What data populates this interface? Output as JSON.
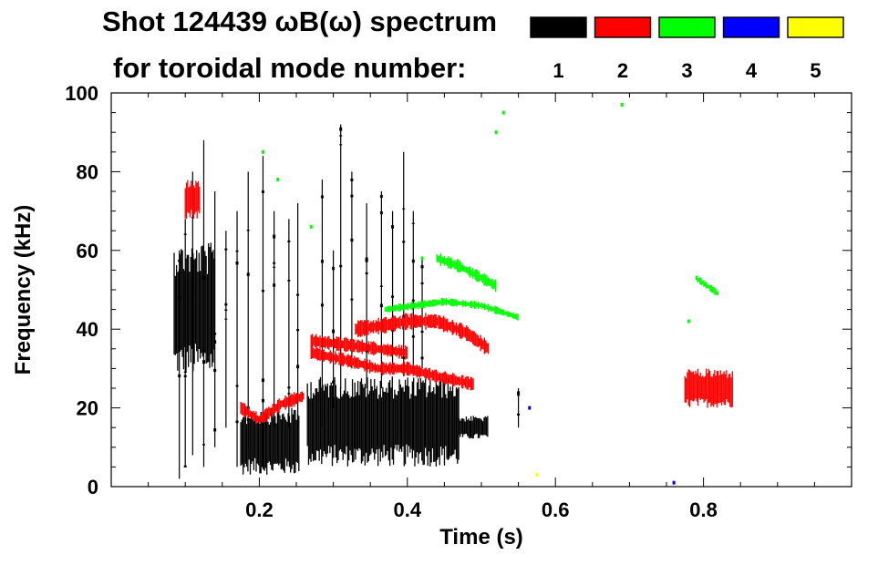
{
  "chart_data": {
    "type": "scatter",
    "title_line1": "Shot 124439 ωB(ω) spectrum",
    "title_line2": "for toroidal mode number:",
    "xlabel": "Time (s)",
    "ylabel": "Frequency (kHz)",
    "xlim": [
      0.0,
      1.0
    ],
    "ylim": [
      0,
      100
    ],
    "x_major_ticks": [
      0.2,
      0.4,
      0.6,
      0.8
    ],
    "x_minor_step": 0.05,
    "y_major_ticks": [
      0,
      20,
      40,
      60,
      80,
      100
    ],
    "y_minor_step": 5,
    "legend": [
      {
        "label": "1",
        "color": "#000000"
      },
      {
        "label": "2",
        "color": "#ff0000"
      },
      {
        "label": "3",
        "color": "#00ff00"
      },
      {
        "label": "4",
        "color": "#0000ff"
      },
      {
        "label": "5",
        "color": "#ffff00"
      }
    ],
    "series": [
      {
        "name": "n=1",
        "color": "#000000",
        "blobs": [
          {
            "t0": 0.085,
            "t1": 0.14,
            "f0": 28,
            "f1": 62
          },
          {
            "t0": 0.175,
            "t1": 0.255,
            "f0": 3,
            "f1": 20
          },
          {
            "t0": 0.265,
            "t1": 0.33,
            "f0": 5,
            "f1": 28
          },
          {
            "t0": 0.33,
            "t1": 0.47,
            "f0": 5,
            "f1": 28
          },
          {
            "t0": 0.47,
            "t1": 0.51,
            "f0": 12,
            "f1": 18
          }
        ],
        "streaks": [
          {
            "t": 0.092,
            "f0": 2,
            "f1": 60
          },
          {
            "t": 0.1,
            "f0": 5,
            "f1": 68
          },
          {
            "t": 0.11,
            "f0": 8,
            "f1": 80
          },
          {
            "t": 0.125,
            "f0": 5,
            "f1": 88
          },
          {
            "t": 0.14,
            "f0": 10,
            "f1": 75
          },
          {
            "t": 0.155,
            "f0": 15,
            "f1": 65
          },
          {
            "t": 0.17,
            "f0": 5,
            "f1": 70
          },
          {
            "t": 0.185,
            "f0": 10,
            "f1": 80
          },
          {
            "t": 0.205,
            "f0": 5,
            "f1": 84
          },
          {
            "t": 0.22,
            "f0": 15,
            "f1": 70
          },
          {
            "t": 0.24,
            "f0": 15,
            "f1": 68
          },
          {
            "t": 0.252,
            "f0": 15,
            "f1": 72
          },
          {
            "t": 0.285,
            "f0": 15,
            "f1": 78
          },
          {
            "t": 0.3,
            "f0": 20,
            "f1": 60
          },
          {
            "t": 0.31,
            "f0": 25,
            "f1": 92
          },
          {
            "t": 0.325,
            "f0": 30,
            "f1": 80
          },
          {
            "t": 0.345,
            "f0": 25,
            "f1": 72
          },
          {
            "t": 0.365,
            "f0": 25,
            "f1": 75
          },
          {
            "t": 0.38,
            "f0": 30,
            "f1": 70
          },
          {
            "t": 0.395,
            "f0": 28,
            "f1": 85
          },
          {
            "t": 0.408,
            "f0": 30,
            "f1": 70
          },
          {
            "t": 0.42,
            "f0": 30,
            "f1": 58
          },
          {
            "t": 0.55,
            "f0": 15,
            "f1": 25
          }
        ]
      },
      {
        "name": "n=2",
        "color": "#ff0000",
        "bands": [
          {
            "t": [
              0.175,
              0.2,
              0.23,
              0.26
            ],
            "f": [
              20,
              17,
              21,
              23
            ],
            "w": 1.6
          },
          {
            "t": [
              0.27,
              0.32,
              0.36,
              0.4
            ],
            "f": [
              37,
              36,
              35,
              34
            ],
            "w": 1.6
          },
          {
            "t": [
              0.33,
              0.37,
              0.4,
              0.44,
              0.48,
              0.51
            ],
            "f": [
              40,
              41,
              42,
              42,
              39,
              35
            ],
            "w": 1.8
          },
          {
            "t": [
              0.27,
              0.32,
              0.36,
              0.4,
              0.44,
              0.49
            ],
            "f": [
              34,
              32,
              30,
              30,
              28,
              26
            ],
            "w": 1.5
          }
        ],
        "blobs": [
          {
            "t0": 0.775,
            "t1": 0.84,
            "f0": 20,
            "f1": 30
          },
          {
            "t0": 0.1,
            "t1": 0.12,
            "f0": 68,
            "f1": 78
          }
        ]
      },
      {
        "name": "n=3",
        "color": "#00ff00",
        "bands": [
          {
            "t": [
              0.44,
              0.47,
              0.5,
              0.52
            ],
            "f": [
              58,
              56,
              53,
              51
            ],
            "w": 1.4
          },
          {
            "t": [
              0.37,
              0.41,
              0.45,
              0.5,
              0.55
            ],
            "f": [
              45,
              46,
              47,
              46,
              43
            ],
            "w": 0.9
          },
          {
            "t": [
              0.79,
              0.82
            ],
            "f": [
              53,
              49
            ],
            "w": 0.8
          }
        ],
        "specks": [
          {
            "t": 0.205,
            "f": 85
          },
          {
            "t": 0.225,
            "f": 78
          },
          {
            "t": 0.27,
            "f": 66
          },
          {
            "t": 0.52,
            "f": 90
          },
          {
            "t": 0.53,
            "f": 95
          },
          {
            "t": 0.42,
            "f": 58
          },
          {
            "t": 0.78,
            "f": 42
          },
          {
            "t": 0.69,
            "f": 97
          }
        ]
      },
      {
        "name": "n=4",
        "color": "#0000ff",
        "specks": [
          {
            "t": 0.565,
            "f": 20
          },
          {
            "t": 0.76,
            "f": 1
          }
        ]
      },
      {
        "name": "n=5",
        "color": "#ffff00",
        "specks": [
          {
            "t": 0.575,
            "f": 3
          }
        ]
      }
    ]
  }
}
